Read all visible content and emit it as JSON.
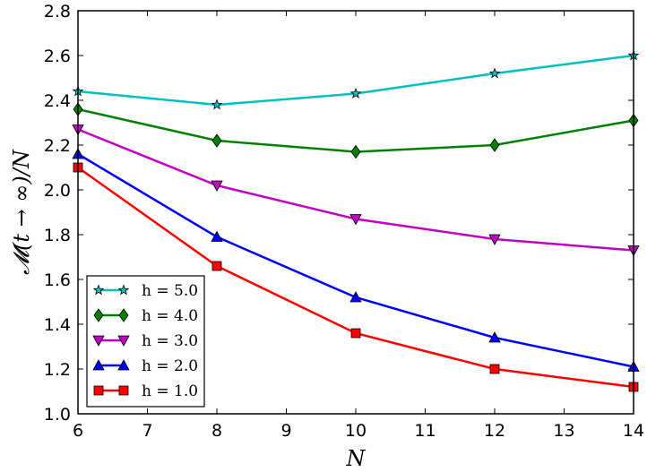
{
  "chart_data": {
    "type": "line",
    "title": "",
    "xlabel": "N",
    "ylabel": "𝓜(t → ∞)/N",
    "xlim": [
      6,
      14
    ],
    "ylim": [
      1.0,
      2.8
    ],
    "xticks": [
      "6",
      "7",
      "8",
      "9",
      "10",
      "11",
      "12",
      "13",
      "14"
    ],
    "yticks": [
      "1.0",
      "1.2",
      "1.4",
      "1.6",
      "1.8",
      "2.0",
      "2.2",
      "2.4",
      "2.6",
      "2.8"
    ],
    "grid": false,
    "legend_position": "lower-left",
    "x": [
      6,
      8,
      10,
      12,
      14
    ],
    "series": [
      {
        "name": "h = 5.0",
        "color": "#00bfbf",
        "marker": "star",
        "values": [
          2.44,
          2.38,
          2.43,
          2.52,
          2.6
        ]
      },
      {
        "name": "h = 4.0",
        "color": "#008000",
        "marker": "diamond",
        "values": [
          2.36,
          2.22,
          2.17,
          2.2,
          2.31
        ]
      },
      {
        "name": "h = 3.0",
        "color": "#bf00bf",
        "marker": "triangle-down",
        "values": [
          2.27,
          2.02,
          1.87,
          1.78,
          1.73
        ]
      },
      {
        "name": "h = 2.0",
        "color": "#0000ff",
        "marker": "triangle-up",
        "values": [
          2.16,
          1.79,
          1.52,
          1.34,
          1.21
        ]
      },
      {
        "name": "h = 1.0",
        "color": "#ff0000",
        "marker": "square",
        "values": [
          2.1,
          1.66,
          1.36,
          1.2,
          1.12
        ]
      }
    ]
  }
}
